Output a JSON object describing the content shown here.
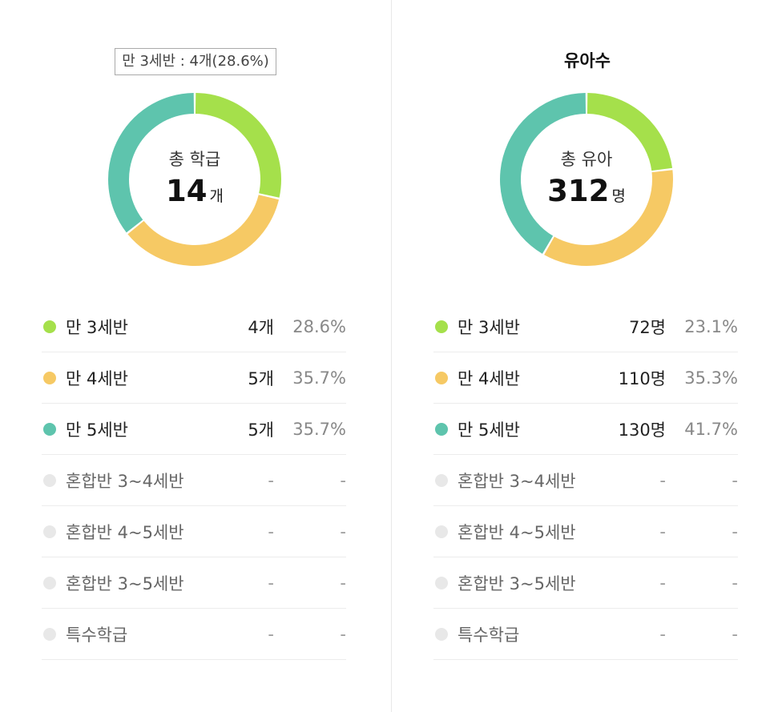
{
  "chart_data": [
    {
      "type": "pie",
      "tooltip": "만 3세반 : 4개(28.6%)",
      "center_label": "총 학급",
      "center_value": "14",
      "center_unit": "개",
      "colors": [
        "#a5e04b",
        "#f6c964",
        "#5ec4ad",
        "#e8e8e8",
        "#e8e8e8",
        "#e8e8e8",
        "#e8e8e8"
      ],
      "values": [
        4,
        5,
        5,
        0,
        0,
        0,
        0
      ],
      "legend": [
        {
          "name": "만 3세반",
          "count": "4개",
          "percent": "28.6%",
          "color": "#a5e04b",
          "active": true
        },
        {
          "name": "만 4세반",
          "count": "5개",
          "percent": "35.7%",
          "color": "#f6c964",
          "active": true
        },
        {
          "name": "만 5세반",
          "count": "5개",
          "percent": "35.7%",
          "color": "#5ec4ad",
          "active": true
        },
        {
          "name": "혼합반 3~4세반",
          "count": "-",
          "percent": "-",
          "color": "#e8e8e8",
          "active": false
        },
        {
          "name": "혼합반 4~5세반",
          "count": "-",
          "percent": "-",
          "color": "#e8e8e8",
          "active": false
        },
        {
          "name": "혼합반 3~5세반",
          "count": "-",
          "percent": "-",
          "color": "#e8e8e8",
          "active": false
        },
        {
          "name": "특수학급",
          "count": "-",
          "percent": "-",
          "color": "#e8e8e8",
          "active": false
        }
      ]
    },
    {
      "type": "pie",
      "title": "유아수",
      "center_label": "총 유아",
      "center_value": "312",
      "center_unit": "명",
      "colors": [
        "#a5e04b",
        "#f6c964",
        "#5ec4ad",
        "#e8e8e8",
        "#e8e8e8",
        "#e8e8e8",
        "#e8e8e8"
      ],
      "values": [
        72,
        110,
        130,
        0,
        0,
        0,
        0
      ],
      "legend": [
        {
          "name": "만 3세반",
          "count": "72명",
          "percent": "23.1%",
          "color": "#a5e04b",
          "active": true
        },
        {
          "name": "만 4세반",
          "count": "110명",
          "percent": "35.3%",
          "color": "#f6c964",
          "active": true
        },
        {
          "name": "만 5세반",
          "count": "130명",
          "percent": "41.7%",
          "color": "#5ec4ad",
          "active": true
        },
        {
          "name": "혼합반 3~4세반",
          "count": "-",
          "percent": "-",
          "color": "#e8e8e8",
          "active": false
        },
        {
          "name": "혼합반 4~5세반",
          "count": "-",
          "percent": "-",
          "color": "#e8e8e8",
          "active": false
        },
        {
          "name": "혼합반 3~5세반",
          "count": "-",
          "percent": "-",
          "color": "#e8e8e8",
          "active": false
        },
        {
          "name": "특수학급",
          "count": "-",
          "percent": "-",
          "color": "#e8e8e8",
          "active": false
        }
      ]
    }
  ]
}
